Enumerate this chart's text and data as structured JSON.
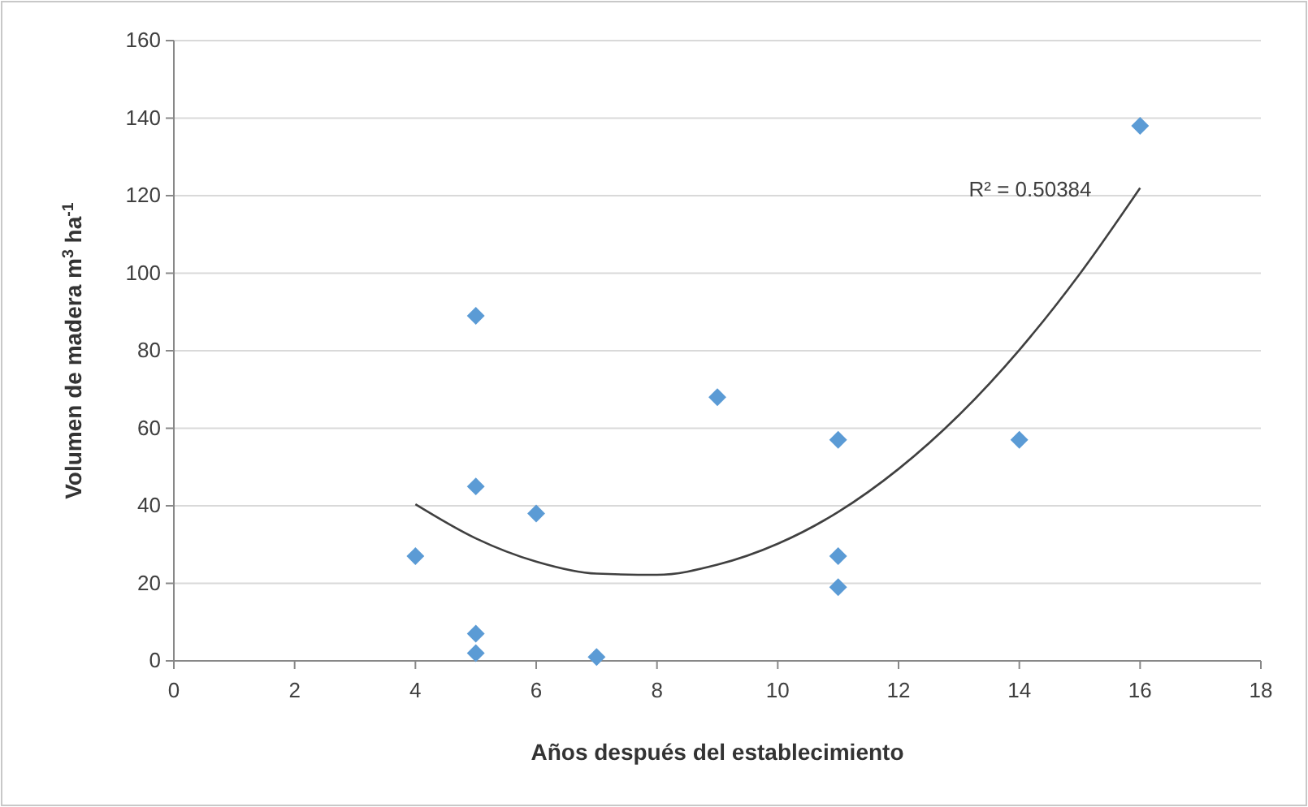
{
  "chart_data": {
    "type": "scatter",
    "xlabel": "Años después del establecimiento",
    "ylabel": "Volumen de madera m$^{3}$ ha$^{-1}$",
    "xlim": [
      0,
      18
    ],
    "xticks": [
      0,
      2,
      4,
      6,
      8,
      10,
      12,
      14,
      16,
      18
    ],
    "ylim": [
      0,
      160
    ],
    "yticks": [
      0,
      20,
      40,
      60,
      80,
      100,
      120,
      140,
      160
    ],
    "grid": "y",
    "marker": "diamond",
    "series": [
      {
        "color": "#5b9bd5",
        "x": [
          4,
          5,
          5,
          5,
          5,
          6,
          7,
          9,
          11,
          11,
          11,
          14,
          16
        ],
        "values": [
          27,
          89,
          45,
          7,
          2,
          38,
          1,
          68,
          57,
          27,
          19,
          57,
          138
        ]
      },
      {
        "type": "line",
        "color": "#404040",
        "marker": "none",
        "x": [
          4,
          5,
          6,
          7,
          8,
          9,
          10,
          11,
          12,
          13,
          14,
          15,
          16
        ],
        "values": [
          40.4,
          31.6,
          25.6,
          22.5,
          22.2,
          24.8,
          30.2,
          38.4,
          49.5,
          63.4,
          80.2,
          99.8,
          122
        ]
      }
    ],
    "annotations": [
      "R² = 0.50384"
    ]
  }
}
